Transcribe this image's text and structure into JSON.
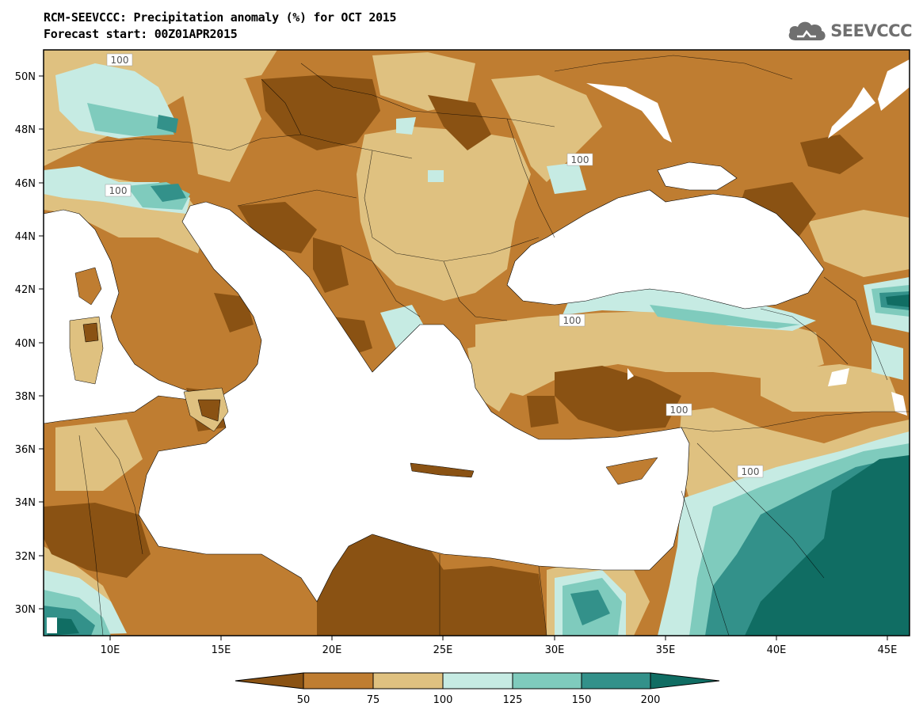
{
  "header": {
    "title": "RCM-SEEVCCC: Precipitation anomaly (%) for OCT 2015",
    "subtitle": "Forecast start: 00Z01APR2015"
  },
  "logo": {
    "text": "SEEVCCC",
    "icon": "cloud-icon"
  },
  "map": {
    "lon_range": [
      7,
      46
    ],
    "lat_range": [
      29,
      51
    ],
    "lon_ticks": [
      "10E",
      "15E",
      "20E",
      "25E",
      "30E",
      "35E",
      "40E",
      "45E"
    ],
    "lat_ticks": [
      "30N",
      "32N",
      "34N",
      "36N",
      "38N",
      "40N",
      "42N",
      "44N",
      "46N",
      "48N",
      "50N"
    ],
    "contour_labels": [
      "100",
      "100",
      "100",
      "100",
      "100",
      "100"
    ]
  },
  "colorbar": {
    "colors": [
      "#8a5213",
      "#bf7d31",
      "#dfc180",
      "#c6ebe3",
      "#7fcbbd",
      "#33918a",
      "#106d63"
    ],
    "labels": [
      "50",
      "75",
      "100",
      "125",
      "150",
      "200"
    ]
  }
}
